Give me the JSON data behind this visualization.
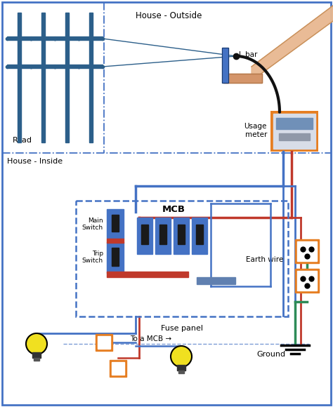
{
  "bg_color": "#ffffff",
  "border_color": "#4472c4",
  "outside_label": "House - Outside",
  "inside_label": "House - Inside",
  "road_label": "Road",
  "lbar_label": "L bar",
  "usage_label": "Usage\nmeter",
  "fuse_label": "Fuse panel",
  "main_switch_label": "Main\nSwitch",
  "trip_switch_label": "Trip\nSwitch",
  "mcb_label": "MCB",
  "earth_wire_label": "Earth wire",
  "ground_label": "Ground",
  "to_mcb_label": "To a MCB →",
  "blue": "#4472c4",
  "red": "#c0392b",
  "orange": "#e67e22",
  "green": "#2e8b57",
  "dark_blue": "#1a3a6e",
  "pole_color": "#2c5f8a",
  "wire_black": "#111111",
  "meter_face": "#8aa8c8",
  "meter_bg": "#b0b8c8"
}
